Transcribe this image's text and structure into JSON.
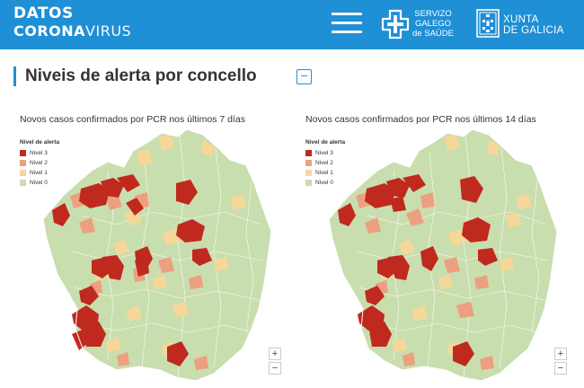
{
  "header": {
    "logo_line1": "DATOS",
    "logo_line2_bold": "CORONA",
    "logo_line2_thin": "VIRUS",
    "sgs_line1": "SERVIZO",
    "sgs_line2": "GALEGO",
    "sgs_line3": "de SAÚDE",
    "xunta_line1": "XUNTA",
    "xunta_line2": "DE GALICIA",
    "menu_icon": "hamburger-menu-icon",
    "bg_color": "#1f8fd6"
  },
  "section": {
    "title": "Niveis de alerta por concello",
    "collapse_symbol": "−"
  },
  "maps": [
    {
      "title": "Novos casos confirmados por PCR nos últimos 7 días",
      "legend_title": "Nivel de alerta",
      "legend": [
        "Nivel 3",
        "Nivel 2",
        "Nivel 1",
        "Nivel 0"
      ],
      "zoom_in": "+",
      "zoom_out": "−"
    },
    {
      "title": "Novos casos confirmados por PCR nos últimos 14 días",
      "legend_title": "Nivel de alerta",
      "legend": [
        "Nivel 3",
        "Nivel 2",
        "Nivel 1",
        "Nivel 0"
      ],
      "zoom_in": "+",
      "zoom_out": "−"
    }
  ],
  "colors": {
    "nivel3": "#c0291e",
    "nivel2": "#eda07f",
    "nivel1": "#f5d79a",
    "nivel0": "#c9deae"
  }
}
